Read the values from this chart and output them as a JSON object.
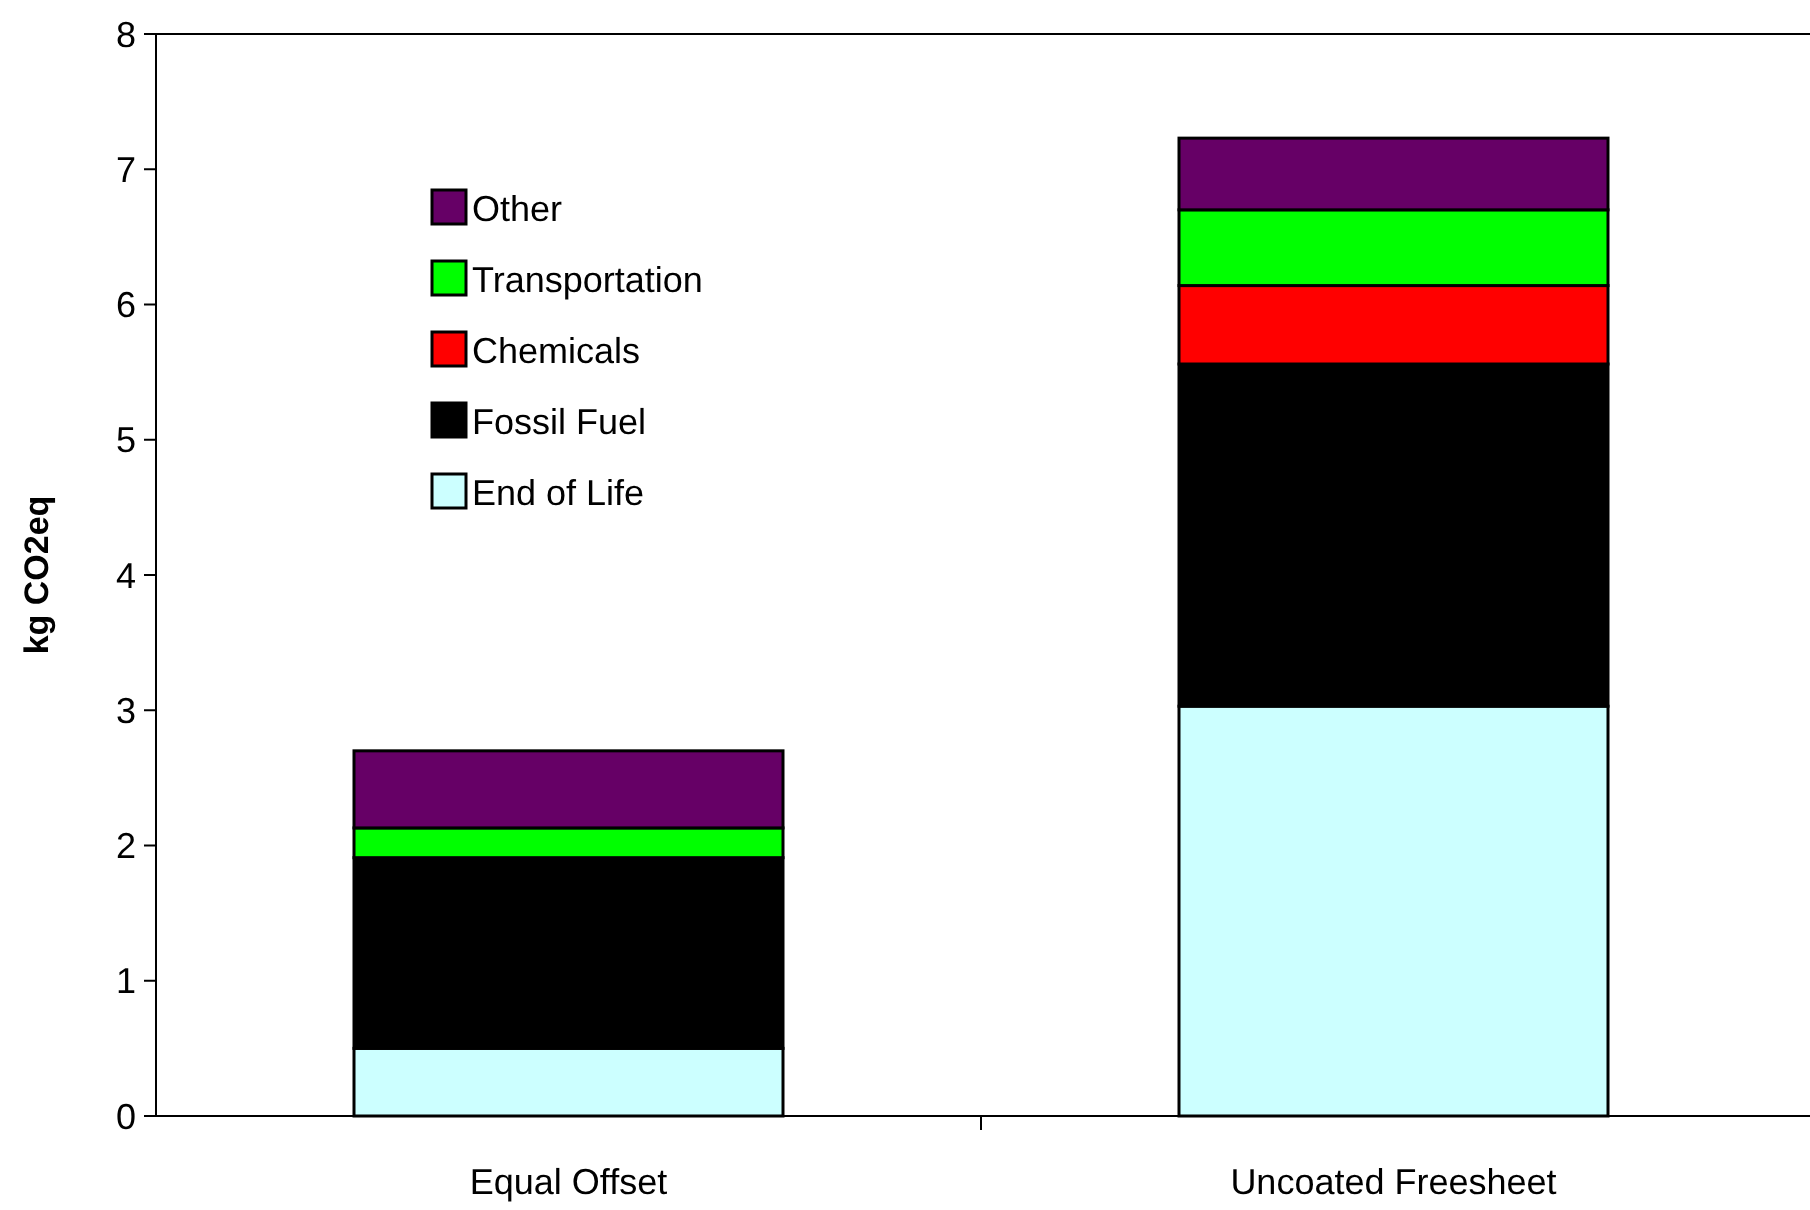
{
  "chart_data": {
    "type": "bar",
    "stacked": true,
    "ylabel": "kg CO2eq",
    "categories": [
      "Equal Offset",
      "Uncoated Freesheet"
    ],
    "series": [
      {
        "name": "End of Life",
        "color": "#ccffff",
        "values": [
          0.5,
          3.03
        ]
      },
      {
        "name": "Fossil Fuel",
        "color": "#000000",
        "values": [
          1.41,
          2.53
        ]
      },
      {
        "name": "Chemicals",
        "color": "#ff0000",
        "values": [
          0,
          0.58
        ]
      },
      {
        "name": "Transportation",
        "color": "#00ff00",
        "values": [
          0.22,
          0.56
        ]
      },
      {
        "name": "Other",
        "color": "#660066",
        "values": [
          0.57,
          0.53
        ]
      }
    ],
    "ylim": [
      0,
      8
    ],
    "yticks": [
      0,
      1,
      2,
      3,
      4,
      5,
      6,
      7,
      8
    ],
    "grid": false,
    "legend": "top left"
  }
}
